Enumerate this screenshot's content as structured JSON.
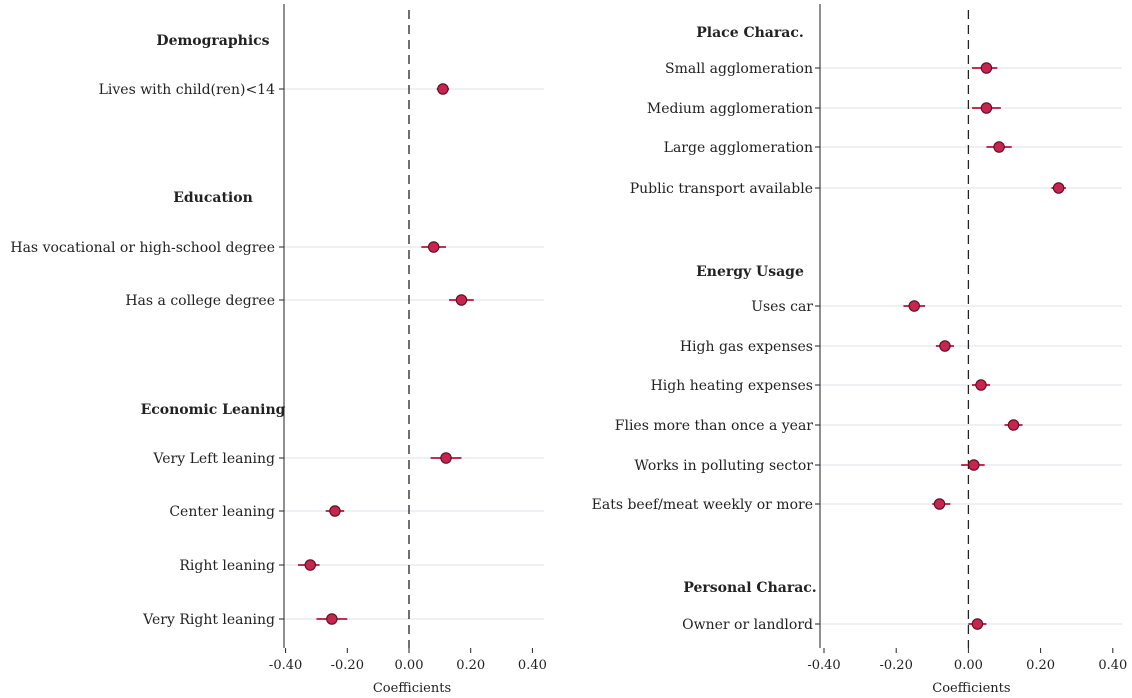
{
  "colors": {
    "point": "#c7254e",
    "point_stroke": "#5a0f24",
    "ci": "#b5173f"
  },
  "chart_data": [
    {
      "type": "scatter",
      "title": "",
      "xlabel": "Coefficients",
      "ylabel": "",
      "xlim": [
        -0.42,
        0.42
      ],
      "xticks": [
        -0.4,
        -0.2,
        0.0,
        0.2,
        0.4
      ],
      "xtick_labels": [
        "-0.40",
        "-0.20",
        "0.00",
        "0.20",
        "0.40"
      ],
      "reference_line": 0,
      "groups": [
        {
          "label": "Demographics",
          "items": [
            {
              "label": "Lives with child(ren)<14",
              "value": 0.11,
              "ci": [
                0.09,
                0.13
              ]
            }
          ]
        },
        {
          "label": "Education",
          "items": [
            {
              "label": "Has vocational or high-school degree",
              "value": 0.08,
              "ci": [
                0.04,
                0.12
              ]
            },
            {
              "label": "Has a college degree",
              "value": 0.17,
              "ci": [
                0.13,
                0.21
              ]
            }
          ]
        },
        {
          "label": "Economic Leaning",
          "items": [
            {
              "label": "Very Left leaning",
              "value": 0.12,
              "ci": [
                0.07,
                0.17
              ]
            },
            {
              "label": "Center leaning",
              "value": -0.24,
              "ci": [
                -0.27,
                -0.21
              ]
            },
            {
              "label": "Right leaning",
              "value": -0.32,
              "ci": [
                -0.36,
                -0.29
              ]
            },
            {
              "label": "Very Right leaning",
              "value": -0.25,
              "ci": [
                -0.3,
                -0.2
              ]
            }
          ]
        }
      ]
    },
    {
      "type": "scatter",
      "title": "",
      "xlabel": "Coefficients",
      "ylabel": "",
      "xlim": [
        -0.42,
        0.42
      ],
      "xticks": [
        -0.4,
        -0.2,
        0.0,
        0.2,
        0.4
      ],
      "xtick_labels": [
        "-0.40",
        "-0.20",
        "0.00",
        "0.20",
        "0.40"
      ],
      "reference_line": 0,
      "groups": [
        {
          "label": "Place Charac.",
          "items": [
            {
              "label": "Small agglomeration",
              "value": 0.05,
              "ci": [
                0.01,
                0.08
              ]
            },
            {
              "label": "Medium agglomeration",
              "value": 0.05,
              "ci": [
                0.01,
                0.09
              ]
            },
            {
              "label": "Large agglomeration",
              "value": 0.085,
              "ci": [
                0.05,
                0.12
              ]
            },
            {
              "label": "Public transport available",
              "value": 0.25,
              "ci": [
                0.23,
                0.27
              ]
            }
          ]
        },
        {
          "label": "Energy Usage",
          "items": [
            {
              "label": "Uses car",
              "value": -0.15,
              "ci": [
                -0.18,
                -0.12
              ]
            },
            {
              "label": "High gas expenses",
              "value": -0.065,
              "ci": [
                -0.09,
                -0.04
              ]
            },
            {
              "label": "High heating expenses",
              "value": 0.035,
              "ci": [
                0.01,
                0.06
              ]
            },
            {
              "label": "Flies more than once a year",
              "value": 0.125,
              "ci": [
                0.1,
                0.15
              ]
            },
            {
              "label": "Works in polluting sector",
              "value": 0.015,
              "ci": [
                -0.02,
                0.045
              ]
            },
            {
              "label": "Eats beef/meat weekly or more",
              "value": -0.08,
              "ci": [
                -0.1,
                -0.05
              ]
            }
          ]
        },
        {
          "label": "Personal Charac.",
          "items": [
            {
              "label": "Owner or landlord",
              "value": 0.025,
              "ci": [
                0.0,
                0.05
              ]
            }
          ]
        }
      ]
    }
  ]
}
